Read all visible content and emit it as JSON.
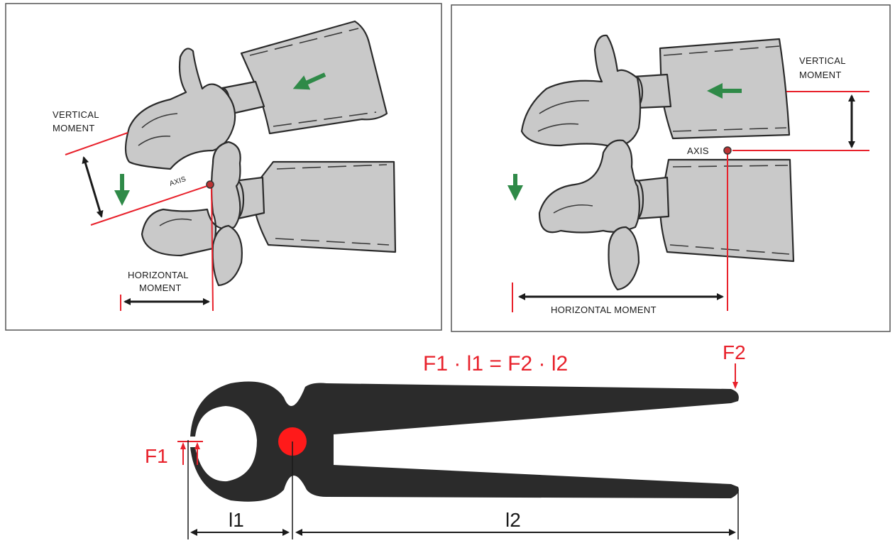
{
  "left_panel": {
    "vertical_moment": [
      "VERTICAL",
      "MOMENT"
    ],
    "axis": "AXIS",
    "horizontal_moment": [
      "HORIZONTAL",
      "MOMENT"
    ]
  },
  "right_panel": {
    "vertical_moment": [
      "VERTICAL",
      "MOMENT"
    ],
    "axis": "AXIS",
    "horizontal_moment": "HORIZONTAL  MOMENT"
  },
  "pliers": {
    "equation": "F1 · l1 = F2 · l2",
    "f1": "F1",
    "f2": "F2",
    "l1": "l1",
    "l2": "l2"
  },
  "colors": {
    "annotation": "#e8212b",
    "bone": "#c9c9c9",
    "motion_arrow": "#2f8a48",
    "tool": "#2b2b2b"
  }
}
